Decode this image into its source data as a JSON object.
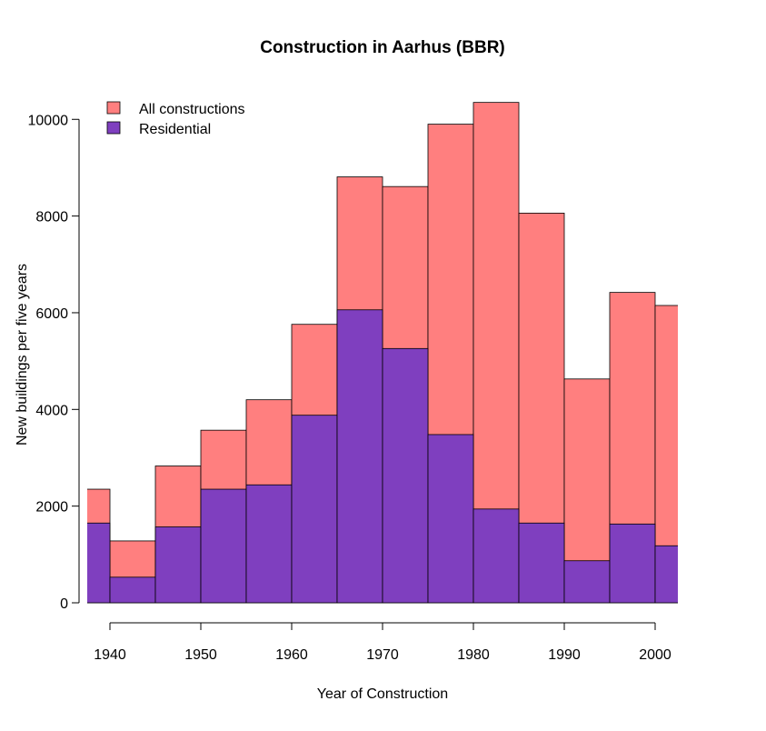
{
  "chart_data": {
    "type": "bar",
    "title": "Construction in Aarhus (BBR)",
    "xlabel": "Year of Construction",
    "ylabel": "New buildings per five years",
    "xlim": [
      1937.5,
      2002.5
    ],
    "ylim": [
      0,
      10400
    ],
    "bin_width": 5,
    "bin_starts": [
      1935,
      1940,
      1945,
      1950,
      1955,
      1960,
      1965,
      1970,
      1975,
      1980,
      1985,
      1990,
      1995,
      2000
    ],
    "x_ticks": [
      1940,
      1950,
      1960,
      1970,
      1980,
      1990,
      2000
    ],
    "y_ticks": [
      0,
      2000,
      4000,
      6000,
      8000,
      10000
    ],
    "legend_position": "top-left",
    "series": [
      {
        "name": "All constructions",
        "color": "#FF7F7F",
        "values": [
          2350,
          1280,
          2830,
          3570,
          4200,
          5760,
          8810,
          8610,
          9900,
          10350,
          8060,
          4630,
          6420,
          6150
        ]
      },
      {
        "name": "Residential",
        "color": "#7F3FBF",
        "values": [
          1650,
          530,
          1570,
          2350,
          2440,
          3880,
          6060,
          5260,
          3480,
          1940,
          1650,
          870,
          1630,
          1180
        ]
      }
    ]
  }
}
